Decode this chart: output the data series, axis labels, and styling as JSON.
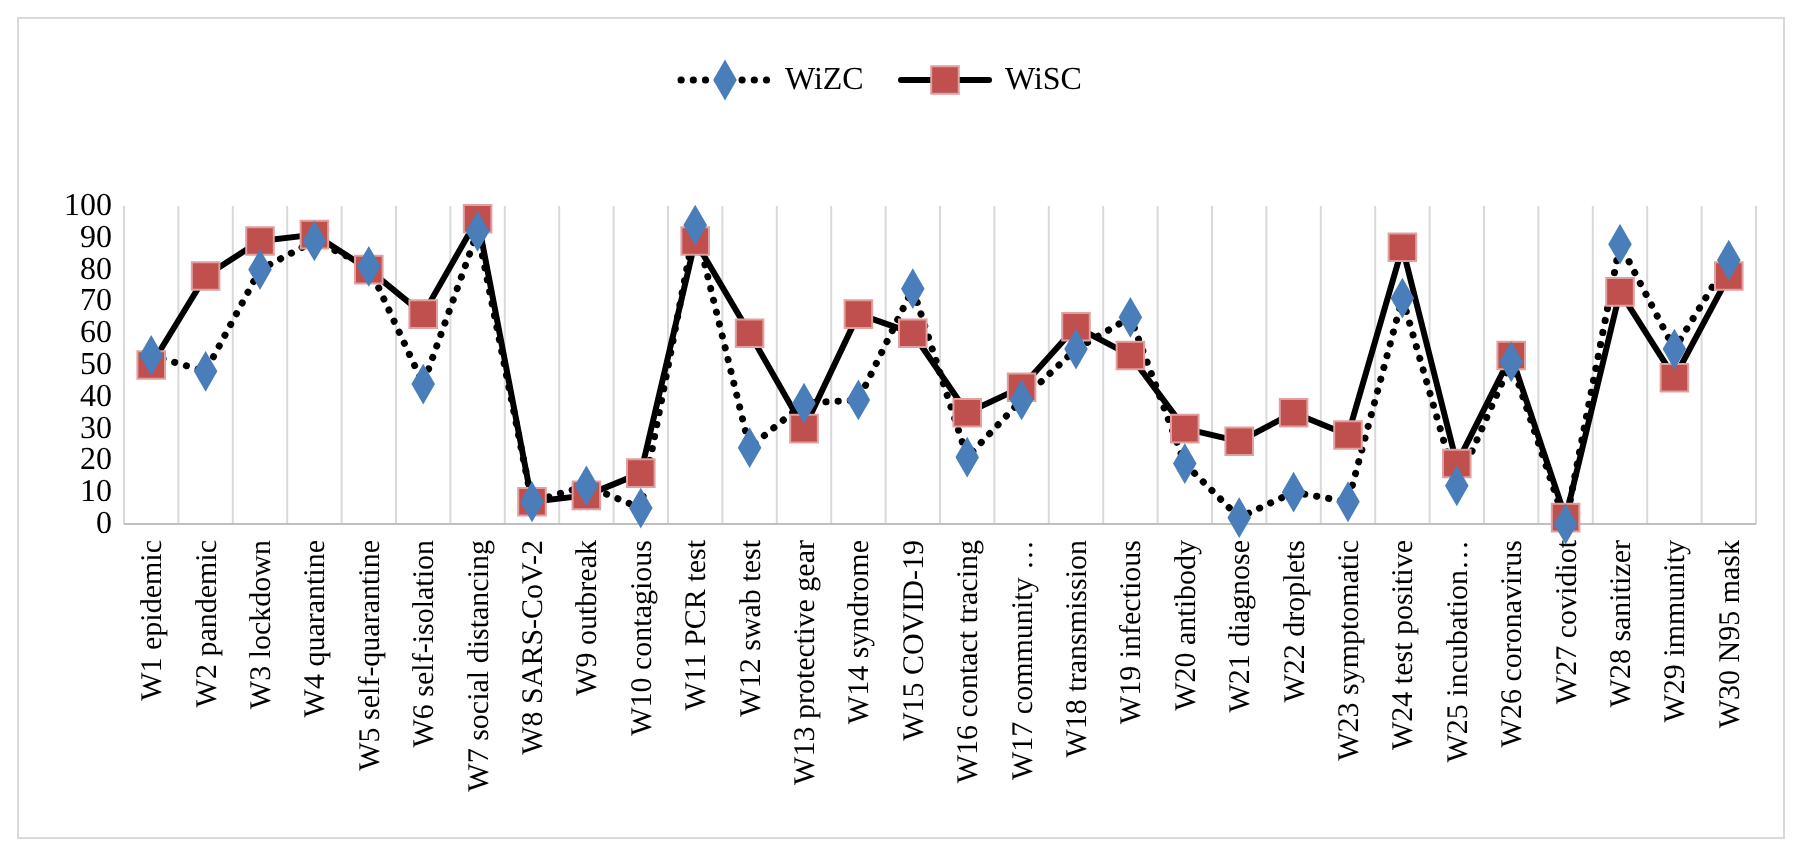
{
  "chart_data": {
    "type": "line",
    "categories": [
      "W1 epidemic",
      "W2 pandemic",
      "W3 lockdown",
      "W4 quarantine",
      "W5 self-quarantine",
      "W6 self-isolation",
      "W7 social distancing",
      "W8 SARS-CoV-2",
      "W9 outbreak",
      "W10 contagious",
      "W11 PCR test",
      "W12 swab test",
      "W13 protective gear",
      "W14 syndrome",
      "W15 COVID-19",
      "W16 contact tracing",
      "W17 community …",
      "W18 transmission",
      "W19 infectious",
      "W20 antibody",
      "W21 diagnose",
      "W22 droplets",
      "W23 symptomatic",
      "W24 test positive",
      "W25 incubation…",
      "W26 coronavirus",
      "W27 covidiot",
      "W28 sanitizer",
      "W29 immunity",
      "W30 N95 mask"
    ],
    "series": [
      {
        "name": "WiZC",
        "color": "#4a7ebb",
        "marker": "diamond",
        "line_style": "dotted",
        "values": [
          53,
          48,
          80,
          89,
          81,
          44,
          92,
          7,
          12,
          5,
          94,
          24,
          38,
          39,
          74,
          21,
          39,
          55,
          65,
          19,
          2,
          10,
          7,
          71,
          12,
          51,
          0,
          88,
          55,
          83
        ]
      },
      {
        "name": "WiSC",
        "color": "#c0504d",
        "marker": "square",
        "line_style": "solid",
        "values": [
          50,
          78,
          89,
          91,
          80,
          66,
          96,
          7,
          9,
          16,
          89,
          60,
          30,
          66,
          60,
          35,
          43,
          62,
          53,
          30,
          26,
          35,
          28,
          87,
          19,
          53,
          2,
          73,
          46,
          78
        ]
      }
    ],
    "ylim": [
      0,
      100
    ],
    "yticks": [
      0,
      10,
      20,
      30,
      40,
      50,
      60,
      70,
      80,
      90,
      100
    ],
    "grid": "x",
    "legend": "top"
  }
}
